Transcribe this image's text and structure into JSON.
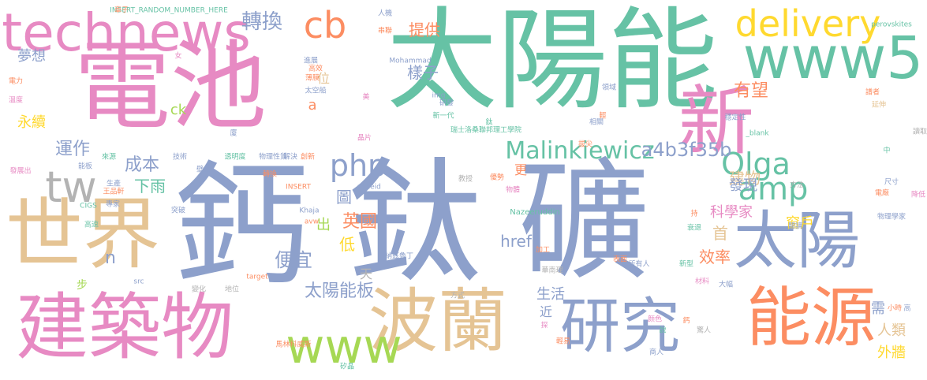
{
  "palette": {
    "green": "#66c2a5",
    "orange": "#fc8d62",
    "blue": "#8da0cb",
    "pink": "#e78ac3",
    "lime": "#a6d854",
    "yellow": "#ffd92f",
    "tan": "#e5c494",
    "grey": "#b3b3b3"
  },
  "words": [
    "太陽能",
    "鈣",
    "鈦",
    "礦",
    "電池",
    "新",
    "世界",
    "建築物",
    "太陽",
    "波蘭",
    "能源",
    "研究",
    "technews",
    "www5",
    "www",
    "tw",
    "delivery",
    "cb",
    "php",
    "amp",
    "Olga",
    "Malinkiewicz",
    "a4b3f35b",
    "轉換",
    "提供",
    "樣子",
    "有望",
    "建物",
    "夢想",
    "永續",
    "運作",
    "成本",
    "下雨",
    "發現",
    "科學家",
    "窗戶",
    "英國",
    "圖",
    "出",
    "低",
    "便宜",
    "效率",
    "首",
    "太陽能板",
    "href",
    "天",
    "生活",
    "需",
    "人類",
    "外牆",
    "近",
    "步",
    "n",
    "ck",
    "a",
    "位",
    "更",
    "INSERT_RANDOM_NUMBER_HERE",
    "perovskites",
    "Mohammad",
    "zoneid",
    "INSERT",
    "img",
    "Nazeeruddin",
    "Khaja",
    "avw",
    "target",
    "src",
    "CIGS",
    "_blank",
    "瑞士洛桑聯邦理工學院",
    "物理性質",
    "納茲魯丁",
    "馬林科威斯",
    "矽晶",
    "教授",
    "優勢",
    "物體",
    "方式",
    "加工",
    "華南理",
    "所有人",
    "新型",
    "表面",
    "材料",
    "轉換",
    "透明度",
    "地位",
    "變化",
    "高速",
    "生產",
    "王品軒",
    "能板",
    "來源",
    "發展出",
    "技術",
    "電力",
    "溫度",
    "專家",
    "突破",
    "進展",
    "高效",
    "薄膜",
    "太空船",
    "研發",
    "新一代",
    "拔尖",
    "相關",
    "鈦",
    "領域",
    "穩定性",
    "譜者",
    "延伸",
    "中",
    "方法",
    "尺寸",
    "電廠",
    "降低",
    "物理學家",
    "衰退",
    "持",
    "大幅",
    "小時",
    "高",
    "颜色",
    "驚人",
    "商人",
    "鈣",
    "說",
    "探",
    "輕易",
    "女",
    "車子",
    "人機",
    "串聯",
    "美",
    "壁上",
    "解決",
    "創新",
    "晶片",
    "閱讀",
    "輕",
    "廈",
    "讀取"
  ]
}
